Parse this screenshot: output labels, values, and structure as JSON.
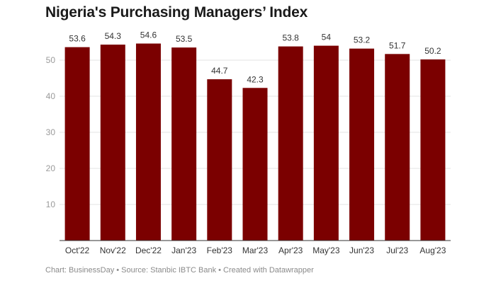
{
  "title": "Nigeria's Purchasing Managers’ Index",
  "footer": "Chart: BusinessDay • Source: Stanbic IBTC Bank • Created with Datawrapper",
  "colors": {
    "bar": "#7b0000",
    "grid": "#e3e3e3",
    "axis": "#333333"
  },
  "chart_data": {
    "type": "bar",
    "title": "Nigeria's Purchasing Managers’ Index",
    "categories": [
      "Oct'22",
      "Nov'22",
      "Dec'22",
      "Jan'23",
      "Feb'23",
      "Mar'23",
      "Apr'23",
      "May'23",
      "Jun'23",
      "Jul'23",
      "Aug'23"
    ],
    "values": [
      53.6,
      54.3,
      54.6,
      53.5,
      44.7,
      42.3,
      53.8,
      54,
      53.2,
      51.7,
      50.2
    ],
    "value_labels": [
      "53.6",
      "54.3",
      "54.6",
      "53.5",
      "44.7",
      "42.3",
      "53.8",
      "54",
      "53.2",
      "51.7",
      "50.2"
    ],
    "ylim": [
      0,
      60
    ],
    "yticks": [
      "10",
      "20",
      "30",
      "40",
      "50"
    ],
    "xlabel": "",
    "ylabel": "",
    "grid": true
  }
}
